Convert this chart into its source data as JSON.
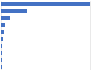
{
  "values": [
    20000,
    5900,
    2000,
    1000,
    700,
    500,
    400,
    350,
    300,
    200
  ],
  "bar_color": "#4472c4",
  "background_color": "#ffffff",
  "xlim": [
    0,
    22000
  ],
  "grid_color": "#d9d9d9",
  "bar_height": 0.55,
  "n_bars": 10
}
